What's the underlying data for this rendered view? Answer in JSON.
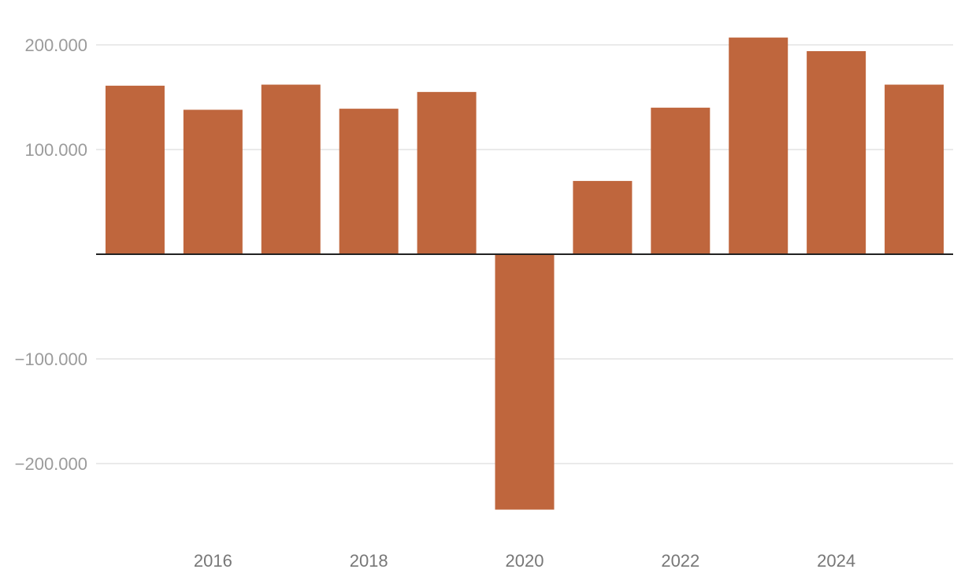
{
  "chart_data": {
    "type": "bar",
    "title": "",
    "xlabel": "",
    "ylabel": "",
    "categories": [
      "2015",
      "2016",
      "2017",
      "2018",
      "2019",
      "2020",
      "2021",
      "2022",
      "2023",
      "2024",
      "2025"
    ],
    "values": [
      161000,
      138000,
      162000,
      139000,
      155000,
      -244000,
      70000,
      140000,
      207000,
      194000,
      162000
    ],
    "ylim": [
      -260000,
      215000
    ],
    "yticks": [
      200000,
      100000,
      -100000,
      -200000
    ],
    "ytick_labels": [
      "200.000",
      "100.000",
      "−100.000",
      "−200.000"
    ],
    "xtick_labels": [
      "2016",
      "2018",
      "2020",
      "2022",
      "2024"
    ],
    "grid": true,
    "legend": "none",
    "colors": {
      "bar": "#bf663d",
      "grid": "#e3e3e3",
      "zero_line": "#222222"
    }
  }
}
